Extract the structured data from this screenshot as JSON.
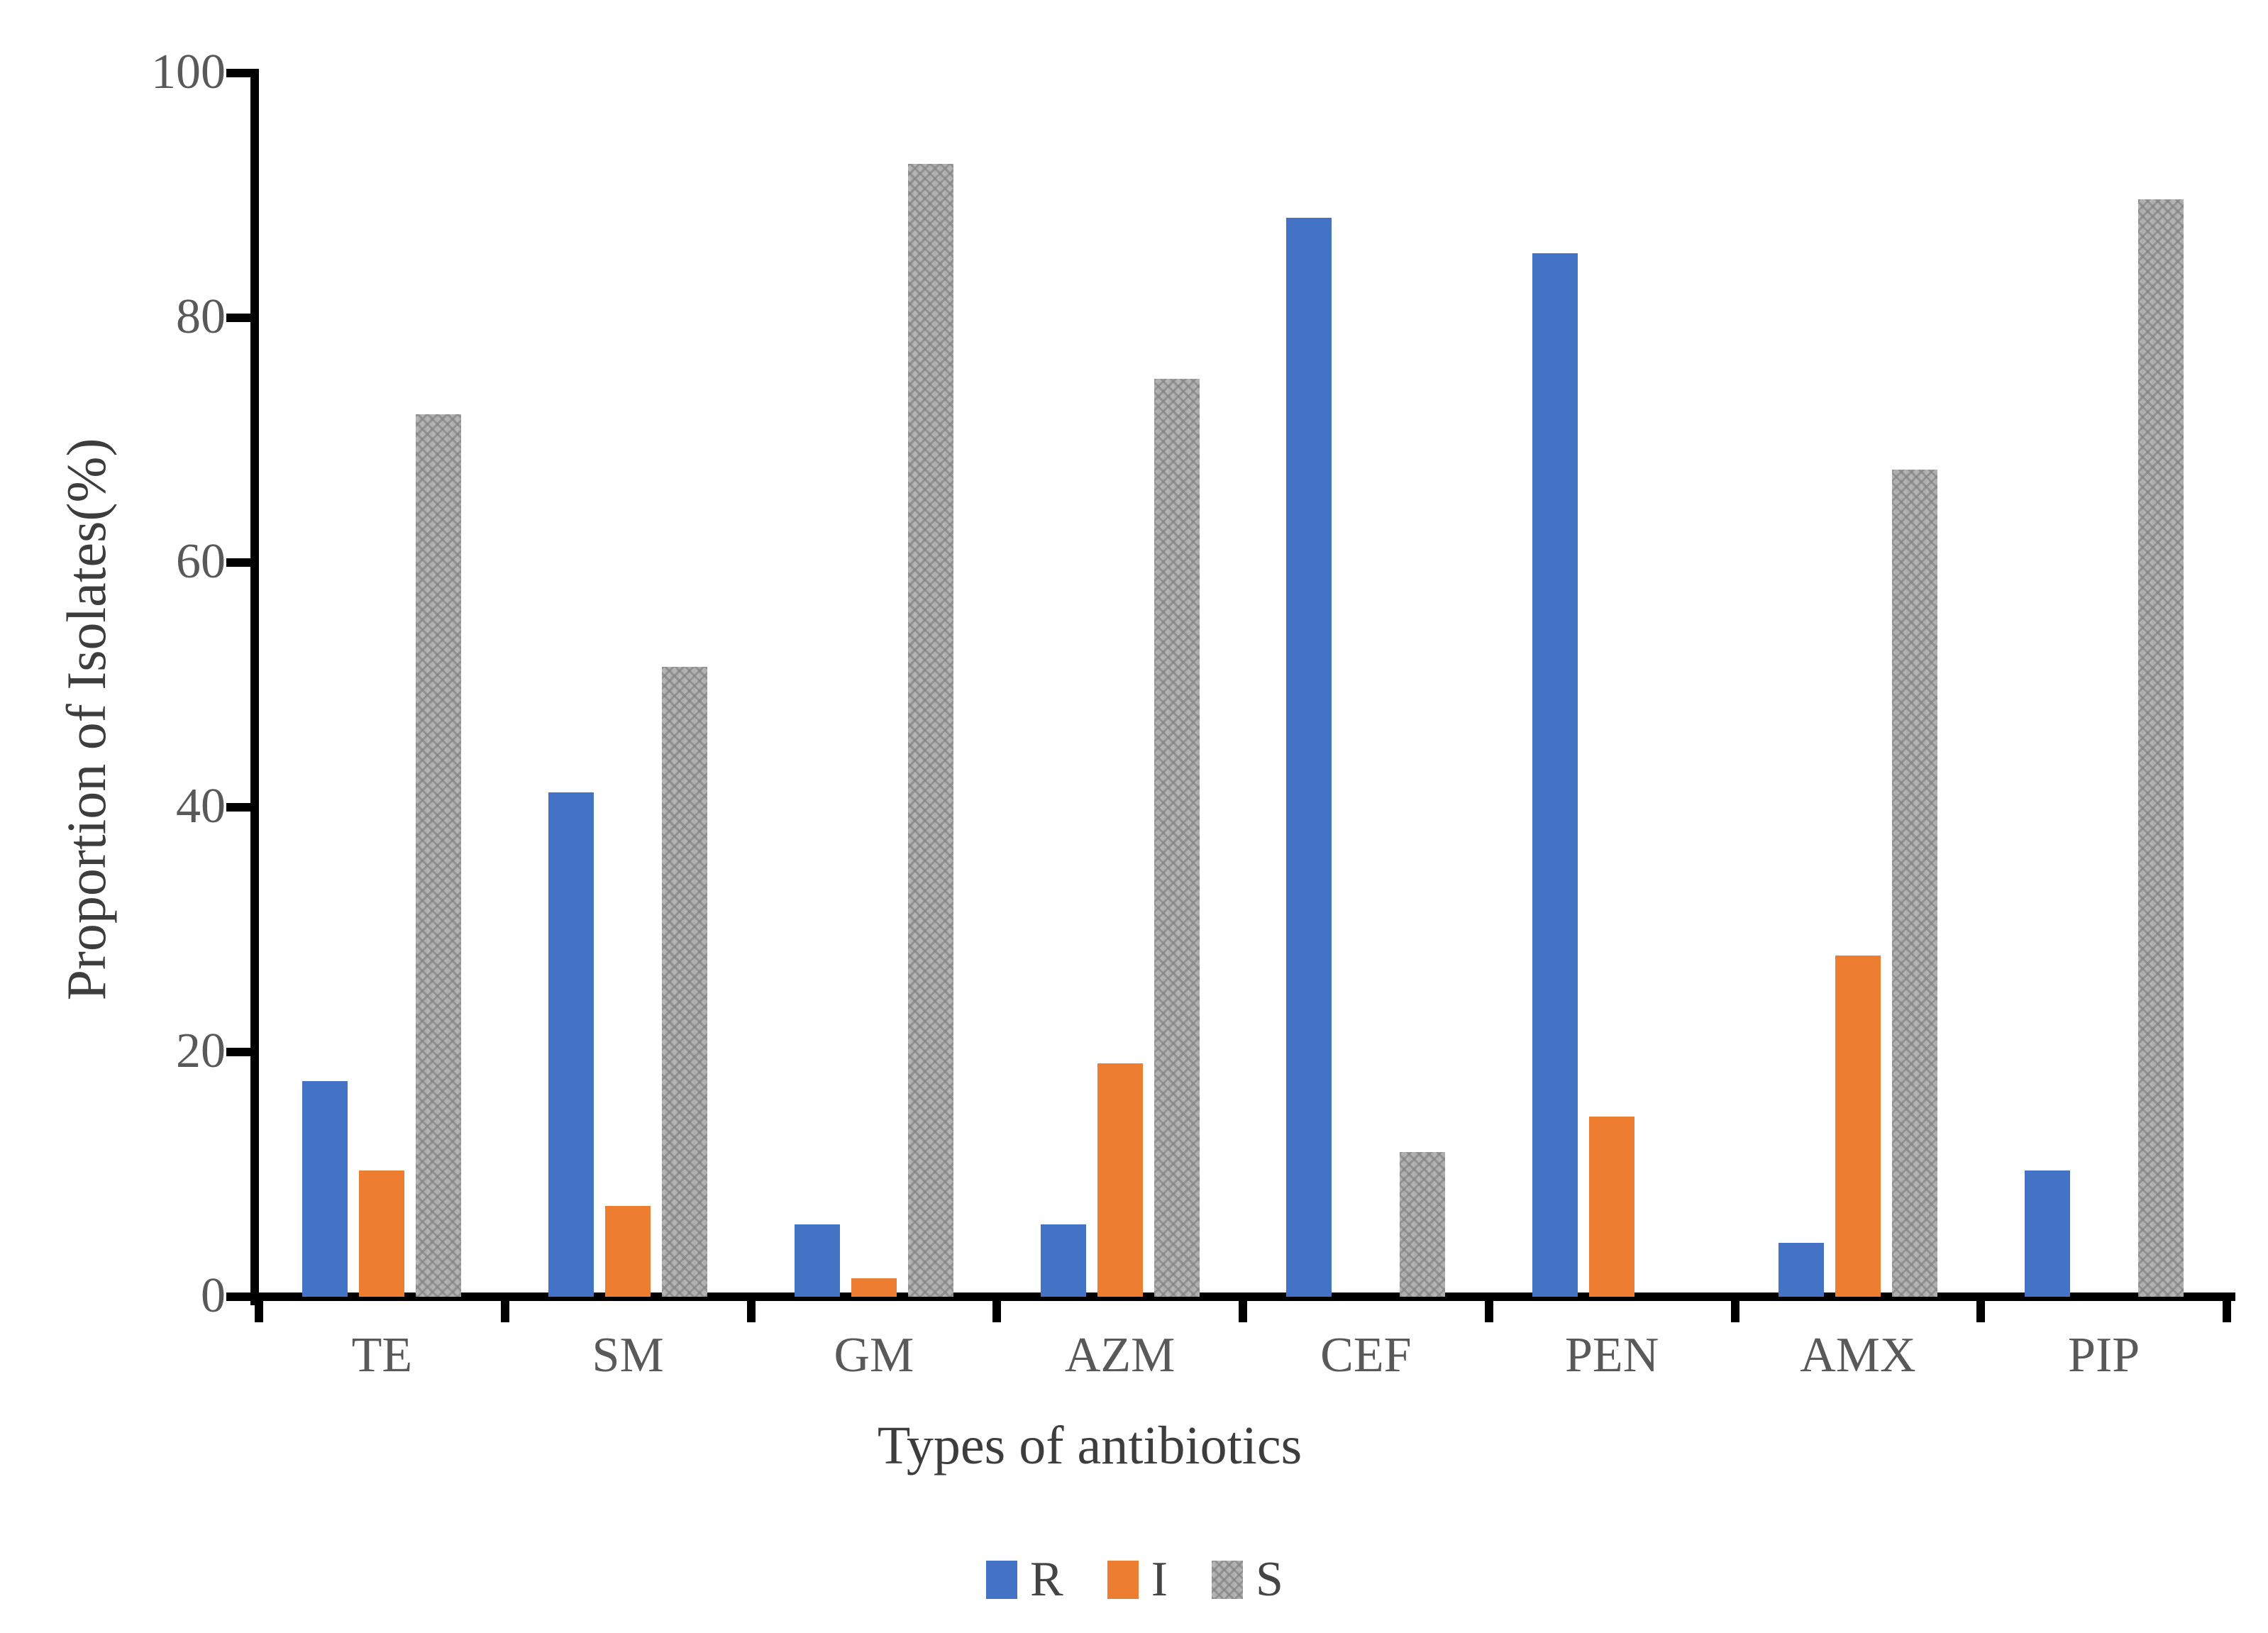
{
  "figure": {
    "background": "#ffffff"
  },
  "chart_data": {
    "type": "bar",
    "title": "",
    "xlabel": "Types of antibiotics",
    "ylabel": "Proportion of Isolates(%)",
    "categories": [
      "TE",
      "SM",
      "GM",
      "AZM",
      "CEF",
      "PEN",
      "AMX",
      "PIP"
    ],
    "series": [
      {
        "name": "R",
        "color": "#4472C4",
        "pattern": "solid",
        "values": [
          17.6,
          41.2,
          5.9,
          5.9,
          88.2,
          85.3,
          4.4,
          10.3
        ]
      },
      {
        "name": "I",
        "color": "#ED7D31",
        "pattern": "solid",
        "values": [
          10.3,
          7.4,
          1.5,
          19.1,
          0,
          14.7,
          27.9,
          0
        ]
      },
      {
        "name": "S",
        "color": "#AEAEAE",
        "pattern": "weave",
        "values": [
          72.1,
          51.5,
          92.6,
          75.0,
          11.8,
          0,
          67.6,
          89.7
        ]
      }
    ],
    "ylim": [
      0,
      100
    ],
    "yticks": [
      0,
      20,
      40,
      60,
      80,
      100
    ],
    "grid": false,
    "legend_position": "bottom",
    "legend_labels": [
      "R",
      "I",
      "S"
    ],
    "axis_color": "#000000",
    "tick_label_color": "#595959",
    "axis_title_color": "#3d3d3d"
  }
}
